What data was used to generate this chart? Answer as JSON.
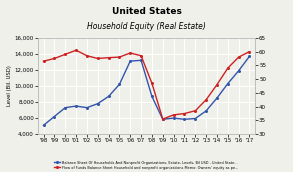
{
  "title": "United States",
  "subtitle": "Household Equity (Real Estate)",
  "ylabel_left": "Level (Bil. USD)",
  "background_color": "#f0f0eb",
  "grid_color": "#ffffff",
  "line1_color": "#3355aa",
  "line2_color": "#cc2222",
  "years": [
    "'98",
    "'99",
    "'00",
    "'01",
    "'02",
    "'03",
    "'04",
    "'05",
    "'06",
    "'07",
    "'08",
    "'09",
    "'10",
    "'11",
    "'12",
    "'13",
    "'14",
    "'15",
    "'16",
    "'17"
  ],
  "x_vals": [
    1998,
    1999,
    2000,
    2001,
    2002,
    2003,
    2004,
    2005,
    2006,
    2007,
    2008,
    2009,
    2010,
    2011,
    2012,
    2013,
    2014,
    2015,
    2016,
    2017
  ],
  "blue_line": [
    5100,
    6200,
    7300,
    7500,
    7300,
    7800,
    8700,
    10200,
    13100,
    13200,
    8700,
    5850,
    6000,
    5850,
    5950,
    6900,
    8500,
    10300,
    11900,
    13700
  ],
  "red_line": [
    56.5,
    57.5,
    59.0,
    60.5,
    58.5,
    57.5,
    57.8,
    58.0,
    59.5,
    58.5,
    48.5,
    35.5,
    37.0,
    37.5,
    38.5,
    42.5,
    48.0,
    54.0,
    58.0,
    60.0
  ],
  "ylim_left": [
    4000,
    16000
  ],
  "ylim_right": [
    30,
    65
  ],
  "yticks_left": [
    4000,
    6000,
    8000,
    10000,
    12000,
    14000,
    16000
  ],
  "yticks_right": [
    30,
    35,
    40,
    45,
    50,
    55,
    60,
    65
  ],
  "legend1": "Balance Sheet Of Households And Nonprofit Organizations, Estate, Levels, Bil USD - United State...",
  "legend2": "Flow of Funds Balance Sheet Household and nonprofit organizations Memo: Owners' equity as pe..."
}
